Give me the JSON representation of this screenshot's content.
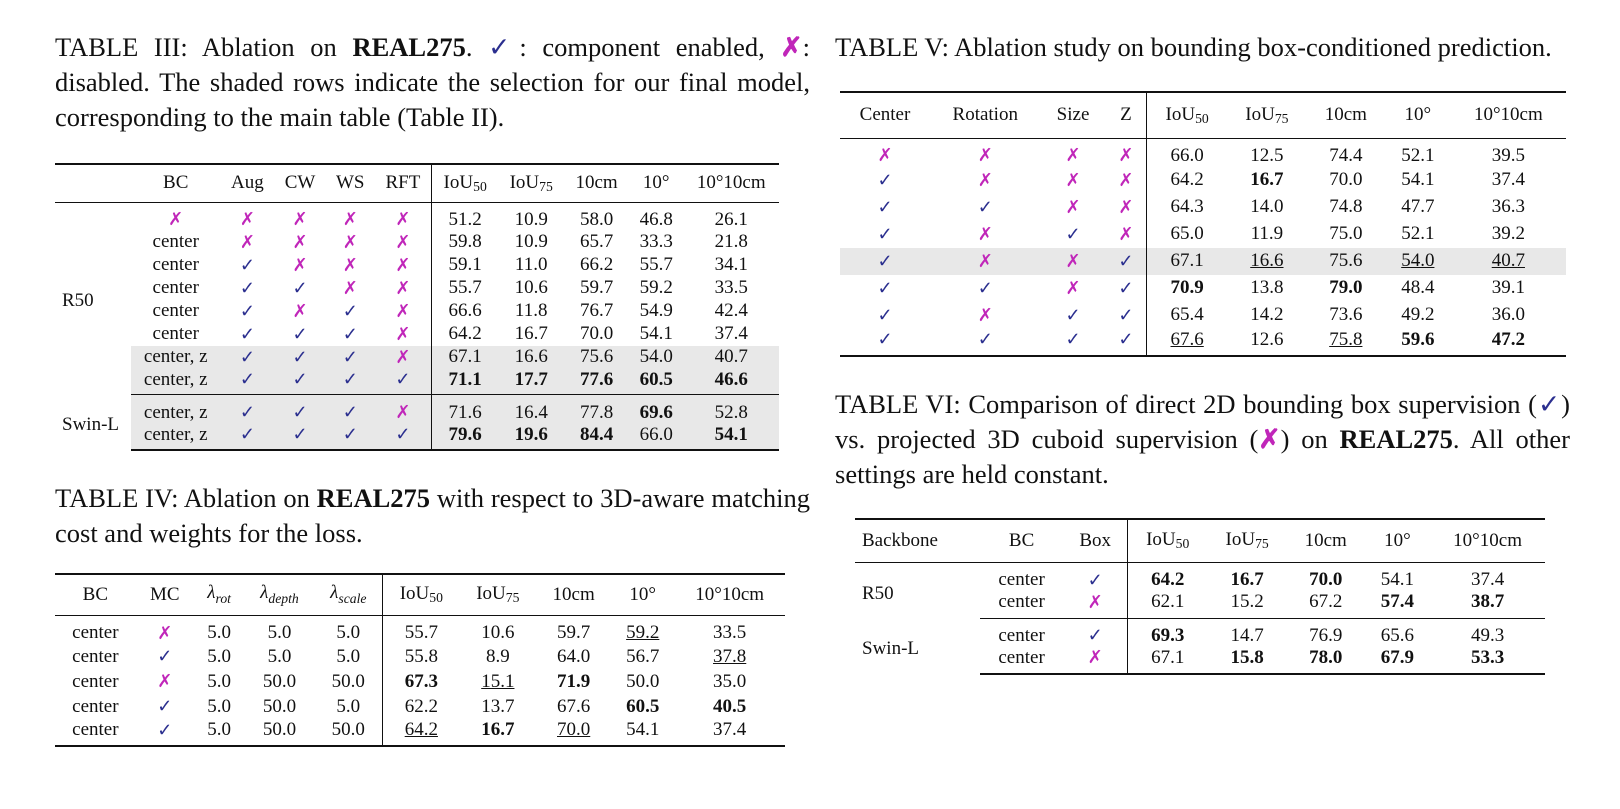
{
  "colors": {
    "check": "#2b2f8f",
    "cross": "#c026b9",
    "shade": "#e8e8e8"
  },
  "table3": {
    "caption_prefix": "TABLE III: Ablation on ",
    "caption_bold": "REAL275",
    "caption_mid1": ". ",
    "caption_check": "✓",
    "caption_mid2": ": component enabled, ",
    "caption_cross": "✗",
    "caption_rest": ": disabled. The shaded rows indicate the selection for our final model, corresponding to the main table (Table II).",
    "headers": [
      "BC",
      "Aug",
      "CW",
      "WS",
      "RFT",
      "IoU",
      "IoU",
      "10cm",
      "10°",
      "10°10cm"
    ],
    "iou50_sub": "50",
    "iou75_sub": "75",
    "group_r50": "R50",
    "group_swin": "Swin-L",
    "r50_rows": [
      [
        "✗",
        "✗",
        "✗",
        "✗",
        "✗",
        "51.2",
        "10.9",
        "58.0",
        "46.8",
        "26.1"
      ],
      [
        "center",
        "✗",
        "✗",
        "✗",
        "✗",
        "59.8",
        "10.9",
        "65.7",
        "33.3",
        "21.8"
      ],
      [
        "center",
        "✓",
        "✗",
        "✗",
        "✗",
        "59.1",
        "11.0",
        "66.2",
        "55.7",
        "34.1"
      ],
      [
        "center",
        "✓",
        "✓",
        "✗",
        "✗",
        "55.7",
        "10.6",
        "59.7",
        "59.2",
        "33.5"
      ],
      [
        "center",
        "✓",
        "✗",
        "✓",
        "✗",
        "66.6",
        "11.8",
        "76.7",
        "54.9",
        "42.4"
      ],
      [
        "center",
        "✓",
        "✓",
        "✓",
        "✗",
        "64.2",
        "16.7",
        "70.0",
        "54.1",
        "37.4"
      ],
      [
        "center, z",
        "✓",
        "✓",
        "✓",
        "✗",
        "67.1",
        "16.6",
        "75.6",
        "54.0",
        "40.7"
      ],
      [
        "center, z",
        "✓",
        "✓",
        "✓",
        "✓",
        "71.1",
        "17.7",
        "77.6",
        "60.5",
        "46.6"
      ]
    ],
    "swin_rows": [
      [
        "center, z",
        "✓",
        "✓",
        "✓",
        "✗",
        "71.6",
        "16.4",
        "77.8",
        "69.6",
        "52.8"
      ],
      [
        "center, z",
        "✓",
        "✓",
        "✓",
        "✓",
        "79.6",
        "19.6",
        "84.4",
        "66.0",
        "54.1"
      ]
    ]
  },
  "table4": {
    "caption_prefix": "TABLE IV: Ablation on ",
    "caption_bold": "REAL275",
    "caption_rest": " with respect to 3D-aware matching cost and weights for the loss.",
    "headers": [
      "BC",
      "MC",
      "λ",
      "λ",
      "λ",
      "IoU",
      "IoU",
      "10cm",
      "10°",
      "10°10cm"
    ],
    "lambda_subs": [
      "rot",
      "depth",
      "scale"
    ],
    "iou50_sub": "50",
    "iou75_sub": "75",
    "rows": [
      [
        "center",
        "✗",
        "5.0",
        "5.0",
        "5.0",
        "55.7",
        "10.6",
        "59.7",
        "59.2",
        "33.5"
      ],
      [
        "center",
        "✓",
        "5.0",
        "5.0",
        "5.0",
        "55.8",
        "8.9",
        "64.0",
        "56.7",
        "37.8"
      ],
      [
        "center",
        "✗",
        "5.0",
        "50.0",
        "50.0",
        "67.3",
        "15.1",
        "71.9",
        "50.0",
        "35.0"
      ],
      [
        "center",
        "✓",
        "5.0",
        "50.0",
        "5.0",
        "62.2",
        "13.7",
        "67.6",
        "60.5",
        "40.5"
      ],
      [
        "center",
        "✓",
        "5.0",
        "50.0",
        "50.0",
        "64.2",
        "16.7",
        "70.0",
        "54.1",
        "37.4"
      ]
    ]
  },
  "table5": {
    "caption": "TABLE V: Ablation study on bounding box-conditioned prediction.",
    "headers": [
      "Center",
      "Rotation",
      "Size",
      "Z",
      "IoU",
      "IoU",
      "10cm",
      "10°",
      "10°10cm"
    ],
    "iou50_sub": "50",
    "iou75_sub": "75",
    "rows": [
      [
        "✗",
        "✗",
        "✗",
        "✗",
        "66.0",
        "12.5",
        "74.4",
        "52.1",
        "39.5"
      ],
      [
        "✓",
        "✗",
        "✗",
        "✗",
        "64.2",
        "16.7",
        "70.0",
        "54.1",
        "37.4"
      ],
      [
        "✓",
        "✓",
        "✗",
        "✗",
        "64.3",
        "14.0",
        "74.8",
        "47.7",
        "36.3"
      ],
      [
        "✓",
        "✗",
        "✓",
        "✗",
        "65.0",
        "11.9",
        "75.0",
        "52.1",
        "39.2"
      ],
      [
        "✓",
        "✗",
        "✗",
        "✓",
        "67.1",
        "16.6",
        "75.6",
        "54.0",
        "40.7"
      ],
      [
        "✓",
        "✓",
        "✗",
        "✓",
        "70.9",
        "13.8",
        "79.0",
        "48.4",
        "39.1"
      ],
      [
        "✓",
        "✗",
        "✓",
        "✓",
        "65.4",
        "14.2",
        "73.6",
        "49.2",
        "36.0"
      ],
      [
        "✓",
        "✓",
        "✓",
        "✓",
        "67.6",
        "12.6",
        "75.8",
        "59.6",
        "47.2"
      ]
    ]
  },
  "table6": {
    "caption_prefix": "TABLE VI: Comparison of direct 2D bounding box supervision (",
    "caption_check": "✓",
    "caption_mid": ") vs. projected 3D cuboid supervision (",
    "caption_cross": "✗",
    "caption_mid2": ") on ",
    "caption_bold": "REAL275",
    "caption_rest": ". All other settings are held constant.",
    "headers": [
      "Backbone",
      "BC",
      "Box",
      "IoU",
      "IoU",
      "10cm",
      "10°",
      "10°10cm"
    ],
    "iou50_sub": "50",
    "iou75_sub": "75",
    "group_r50": "R50",
    "group_swin": "Swin-L",
    "r50_rows": [
      [
        "center",
        "✓",
        "64.2",
        "16.7",
        "70.0",
        "54.1",
        "37.4"
      ],
      [
        "center",
        "✗",
        "62.1",
        "15.2",
        "67.2",
        "57.4",
        "38.7"
      ]
    ],
    "swin_rows": [
      [
        "center",
        "✓",
        "69.3",
        "14.7",
        "76.9",
        "65.6",
        "49.3"
      ],
      [
        "center",
        "✗",
        "67.1",
        "15.8",
        "78.0",
        "67.9",
        "53.3"
      ]
    ]
  }
}
